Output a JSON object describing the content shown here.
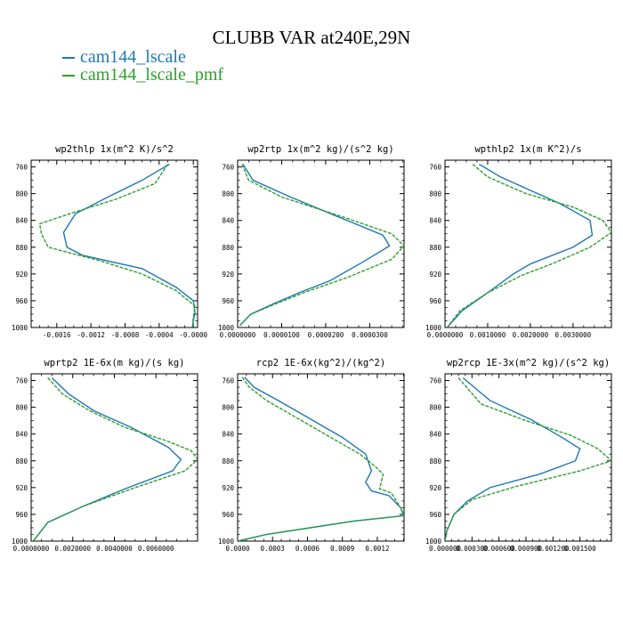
{
  "title": "CLUBB VAR at240E,29N",
  "legend": [
    {
      "name": "cam144_lscale",
      "color": "#1f77b4"
    },
    {
      "name": "cam144_lscale_pmf",
      "color": "#2ca02c"
    }
  ],
  "chart_data": [
    {
      "type": "line",
      "title": "wp2thlp  1x(m^2 K)/s^2",
      "ylim": [
        1000,
        750
      ],
      "yticks": [
        760,
        800,
        840,
        880,
        920,
        960,
        1000
      ],
      "xlim": [
        -0.0019,
        5e-05
      ],
      "xticks": [
        -0.0016,
        -0.0012,
        -0.0008,
        -0.0004,
        -0.0
      ],
      "xtick_labels": [
        "-0.0016",
        "-0.0012",
        "-0.0008",
        "-0.0004",
        "-0.0000"
      ],
      "series": [
        {
          "name": "cam144_lscale",
          "x": [
            -0.00028,
            -0.0006,
            -0.001,
            -0.00138,
            -0.00152,
            -0.00148,
            -0.0013,
            -0.0006,
            -0.0002,
            0.0,
            2e-05,
            0.0,
            -1e-05
          ],
          "y": [
            756,
            780,
            805,
            830,
            858,
            880,
            892,
            912,
            940,
            960,
            978,
            990,
            1000
          ]
        },
        {
          "name": "cam144_lscale_pmf",
          "x": [
            -0.0003,
            -0.00045,
            -0.0009,
            -0.0014,
            -0.0018,
            -0.00178,
            -0.0017,
            -0.0011,
            -0.0006,
            -0.0002,
            2e-05,
            0.0,
            -1e-05
          ],
          "y": [
            756,
            785,
            808,
            828,
            845,
            860,
            880,
            900,
            920,
            945,
            968,
            985,
            1000
          ]
        }
      ]
    },
    {
      "type": "line",
      "title": "wp2rtp  1x(m^2 kg)/(s^2 kg)",
      "ylim": [
        1000,
        750
      ],
      "yticks": [
        760,
        800,
        840,
        880,
        920,
        960,
        1000
      ],
      "xlim": [
        0,
        3.78e-05
      ],
      "xticks": [
        0,
        1e-05,
        2e-05,
        3e-05
      ],
      "xtick_labels": [
        "0.0000000",
        "0.0000100",
        "0.0000200",
        "0.0000300"
      ],
      "series": [
        {
          "name": "cam144_lscale",
          "x": [
            1.2e-06,
            3.5e-06,
            1.2e-05,
            2.3e-05,
            3.3e-05,
            3.45e-05,
            2.9e-05,
            2.1e-05,
            1.4e-05,
            8e-06,
            3e-06,
            5e-07
          ],
          "y": [
            756,
            780,
            805,
            835,
            862,
            878,
            900,
            930,
            948,
            965,
            980,
            997
          ]
        },
        {
          "name": "cam144_lscale_pmf",
          "x": [
            1e-06,
            2.5e-06,
            1e-05,
            2.4e-05,
            3.5e-05,
            3.78e-05,
            3.5e-05,
            2.5e-05,
            1.5e-05,
            8.5e-06,
            3e-06,
            5e-07
          ],
          "y": [
            756,
            780,
            805,
            835,
            860,
            878,
            898,
            925,
            948,
            965,
            980,
            997
          ]
        }
      ]
    },
    {
      "type": "line",
      "title": "wpthlp2  1x(m K^2)/s",
      "ylim": [
        1000,
        750
      ],
      "yticks": [
        760,
        800,
        840,
        880,
        920,
        960,
        1000
      ],
      "xlim": [
        0,
        0.0039
      ],
      "xticks": [
        0,
        0.001,
        0.002,
        0.003
      ],
      "xtick_labels": [
        "0.0000000",
        "0.0010000",
        "0.0020000",
        "0.0030000"
      ],
      "series": [
        {
          "name": "cam144_lscale",
          "x": [
            0.0008,
            0.0013,
            0.002,
            0.0027,
            0.0034,
            0.00345,
            0.003,
            0.002,
            0.0016,
            0.001,
            0.0004,
            5e-05
          ],
          "y": [
            756,
            775,
            795,
            815,
            840,
            862,
            880,
            905,
            920,
            948,
            975,
            1000
          ]
        },
        {
          "name": "cam144_lscale_pmf",
          "x": [
            0.00065,
            0.001,
            0.0019,
            0.003,
            0.0037,
            0.0039,
            0.0034,
            0.0025,
            0.0018,
            0.001,
            0.00035,
            5e-05
          ],
          "y": [
            756,
            775,
            800,
            820,
            840,
            858,
            880,
            905,
            922,
            948,
            975,
            1000
          ]
        }
      ]
    },
    {
      "type": "line",
      "title": "wprtp2  1E-6x(m kg)/(s kg)",
      "ylim": [
        1000,
        750
      ],
      "yticks": [
        760,
        800,
        840,
        880,
        920,
        960,
        1000
      ],
      "xlim": [
        0,
        0.008
      ],
      "xticks": [
        0,
        0.002,
        0.004,
        0.006
      ],
      "xtick_labels": [
        "0.0000000",
        "0.0020000",
        "0.0040000",
        "0.0060000"
      ],
      "series": [
        {
          "name": "cam144_lscale",
          "x": [
            0.001,
            0.0018,
            0.003,
            0.0048,
            0.0066,
            0.0072,
            0.0068,
            0.0045,
            0.0025,
            0.0008,
            0.0001
          ],
          "y": [
            756,
            780,
            805,
            830,
            860,
            878,
            895,
            922,
            948,
            972,
            1000
          ]
        },
        {
          "name": "cam144_lscale_pmf",
          "x": [
            0.0008,
            0.0015,
            0.0028,
            0.0045,
            0.0065,
            0.0077,
            0.008,
            0.0074,
            0.005,
            0.0025,
            0.0008,
            0.0001
          ],
          "y": [
            756,
            780,
            805,
            830,
            850,
            865,
            878,
            895,
            920,
            948,
            972,
            1000
          ]
        }
      ]
    },
    {
      "type": "line",
      "title": "rcp2  1E-6x(kg^2)/(kg^2)",
      "ylim": [
        1000,
        750
      ],
      "yticks": [
        760,
        800,
        840,
        880,
        920,
        960,
        1000
      ],
      "xlim": [
        0,
        0.00143
      ],
      "xticks": [
        0,
        0.0003,
        0.0006,
        0.0009,
        0.0012
      ],
      "xtick_labels": [
        "0.0000",
        "0.0003",
        "0.0006",
        "0.0009",
        "0.0012"
      ],
      "series": [
        {
          "name": "cam144_lscale",
          "x": [
            6e-05,
            0.00014,
            0.00035,
            0.0006,
            0.0009,
            0.0011,
            0.00115,
            0.0011,
            0.00115,
            0.0013,
            0.0014,
            0.00143,
            0.001,
            0.00025,
            0.0
          ],
          "y": [
            755,
            770,
            790,
            815,
            845,
            870,
            895,
            912,
            925,
            932,
            950,
            962,
            970,
            990,
            1000
          ]
        },
        {
          "name": "cam144_lscale_pmf",
          "x": [
            4e-05,
            0.0001,
            0.00025,
            0.0005,
            0.0008,
            0.00105,
            0.00118,
            0.00125,
            0.00122,
            0.00132,
            0.0014,
            0.00143,
            0.001,
            0.00025,
            0.0
          ],
          "y": [
            755,
            770,
            790,
            815,
            845,
            870,
            888,
            900,
            922,
            928,
            950,
            962,
            970,
            990,
            1000
          ]
        }
      ]
    },
    {
      "type": "line",
      "title": "wp2rcp  1E-3x(m^2 kg)/(s^2 kg)",
      "ylim": [
        1000,
        750
      ],
      "yticks": [
        760,
        800,
        840,
        880,
        920,
        960,
        1000
      ],
      "xlim": [
        0,
        0.00185
      ],
      "xticks": [
        0,
        0.0003,
        0.0006,
        0.0009,
        0.0012,
        0.0015
      ],
      "xtick_labels": [
        "0.000000",
        "0.000300",
        "0.000600",
        "0.000900",
        "0.001200",
        "0.001500"
      ],
      "series": [
        {
          "name": "cam144_lscale",
          "x": [
            0.0002,
            0.0005,
            0.00095,
            0.0013,
            0.0015,
            0.00145,
            0.00105,
            0.0005,
            0.00025,
            0.0001,
            2e-05,
            0.0
          ],
          "y": [
            756,
            790,
            818,
            845,
            862,
            880,
            900,
            920,
            940,
            960,
            985,
            1000
          ]
        },
        {
          "name": "cam144_lscale_pmf",
          "x": [
            0.00015,
            0.0004,
            0.0009,
            0.0014,
            0.0017,
            0.00185,
            0.0015,
            0.0008,
            0.0003,
            0.0001,
            2e-05,
            0.0
          ],
          "y": [
            756,
            795,
            820,
            842,
            862,
            880,
            895,
            918,
            938,
            960,
            985,
            1000
          ]
        }
      ]
    }
  ]
}
